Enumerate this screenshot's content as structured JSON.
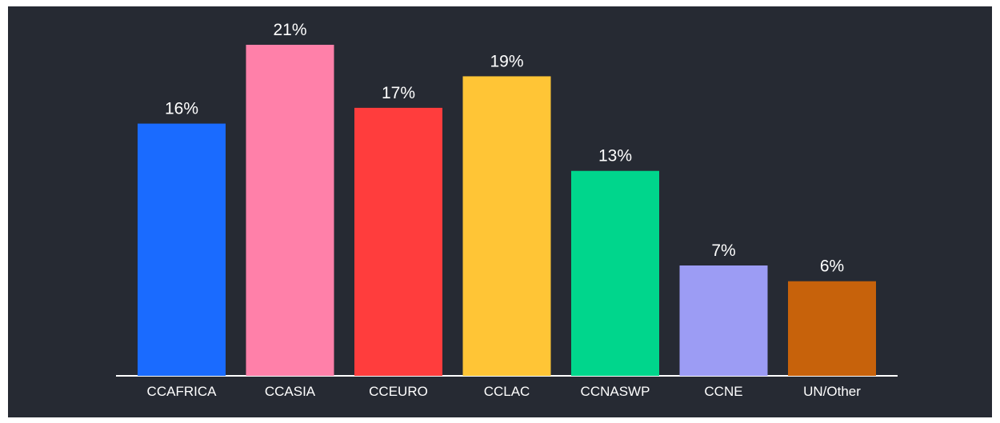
{
  "chart_data": {
    "type": "bar",
    "categories": [
      "CCAFRICA",
      "CCASIA",
      "CCEURO",
      "CCLAC",
      "CCNASWP",
      "CCNE",
      "UN/Other"
    ],
    "values": [
      16,
      21,
      17,
      19,
      13,
      7,
      6
    ],
    "value_labels": [
      "16%",
      "21%",
      "17%",
      "19%",
      "13%",
      "7%",
      "6%"
    ],
    "colors": [
      "#1a6bff",
      "#ff80a9",
      "#ff3d3d",
      "#ffc536",
      "#00d68c",
      "#9c9cf4",
      "#c7620b"
    ]
  }
}
